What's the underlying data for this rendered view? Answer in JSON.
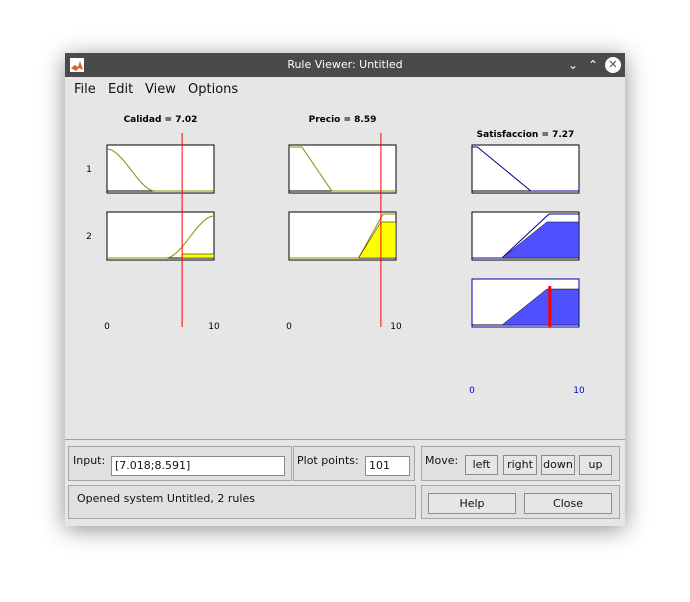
{
  "window": {
    "title": "Rule Viewer: Untitled"
  },
  "menu": [
    "File",
    "Edit",
    "View",
    "Options"
  ],
  "chart_data": {
    "type": "rule-viewer",
    "inputs": [
      {
        "name": "Calidad",
        "value": 7.02,
        "title": "Calidad = 7.02",
        "range": [
          0,
          10
        ],
        "tick_labels": [
          "0",
          "10"
        ]
      },
      {
        "name": "Precio",
        "value": 8.59,
        "title": "Precio = 8.59",
        "range": [
          0,
          10
        ],
        "tick_labels": [
          "0",
          "10"
        ]
      }
    ],
    "output": {
      "name": "Satisfaccion",
      "value": 7.27,
      "title": "Satisfaccion = 7.27",
      "range": [
        0,
        10
      ],
      "tick_labels": [
        "0",
        "10"
      ]
    },
    "rules": [
      "1",
      "2"
    ],
    "mf_colors": {
      "input_curve": "#8b8b00",
      "input_fill": "#ffff00",
      "output_curve": "#00008b",
      "output_fill": "#5050ff",
      "index_line": "#ff0000"
    }
  },
  "bottom": {
    "input_label": "Input:",
    "input_value": "[7.018;8.591]",
    "plot_points_label": "Plot points:",
    "plot_points_value": "101",
    "move_label": "Move:",
    "left_label": "left",
    "right_label": "right",
    "down_label": "down",
    "up_label": "up",
    "status_text": "Opened system Untitled, 2 rules",
    "help_label": "Help",
    "close_label": "Close"
  }
}
